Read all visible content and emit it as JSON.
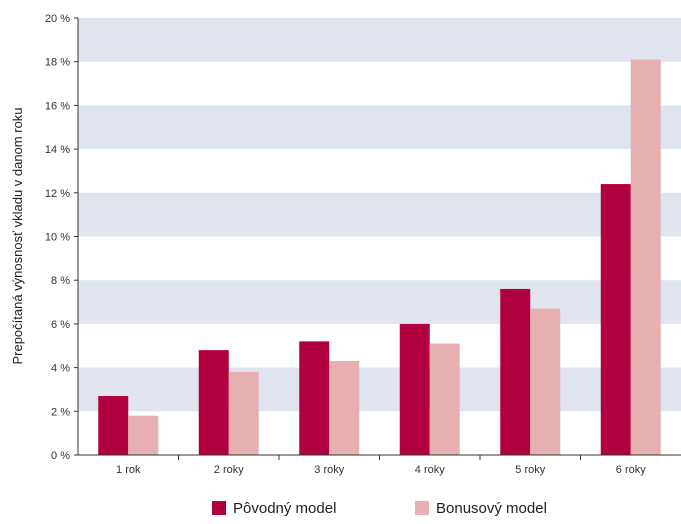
{
  "chart_data": {
    "type": "bar",
    "title": "",
    "xlabel": "",
    "ylabel": "Prepočítaná výnosnosť vkladu v danom roku",
    "categories": [
      "1 rok",
      "2 roky",
      "3 roky",
      "4 roky",
      "5 roky",
      "6 roky"
    ],
    "series": [
      {
        "name": "Pôvodný model",
        "color": "#b1003f",
        "values": [
          2.7,
          4.8,
          5.2,
          6.0,
          7.6,
          12.4
        ]
      },
      {
        "name": "Bonusový model",
        "color": "#e6b0b3",
        "values": [
          1.8,
          3.8,
          4.3,
          5.1,
          6.7,
          18.1
        ]
      }
    ],
    "ylim": [
      0,
      20
    ],
    "yticks": [
      0,
      2,
      4,
      6,
      8,
      10,
      12,
      14,
      16,
      18,
      20
    ],
    "ytick_labels": [
      "0 %",
      "2 %",
      "4 %",
      "6 %",
      "8 %",
      "10 %",
      "12 %",
      "14 %",
      "16 %",
      "18 %",
      "20 %"
    ],
    "grid": "alternating horizontal bands",
    "band_color": "#dfe4ee",
    "legend_position": "bottom-center"
  }
}
